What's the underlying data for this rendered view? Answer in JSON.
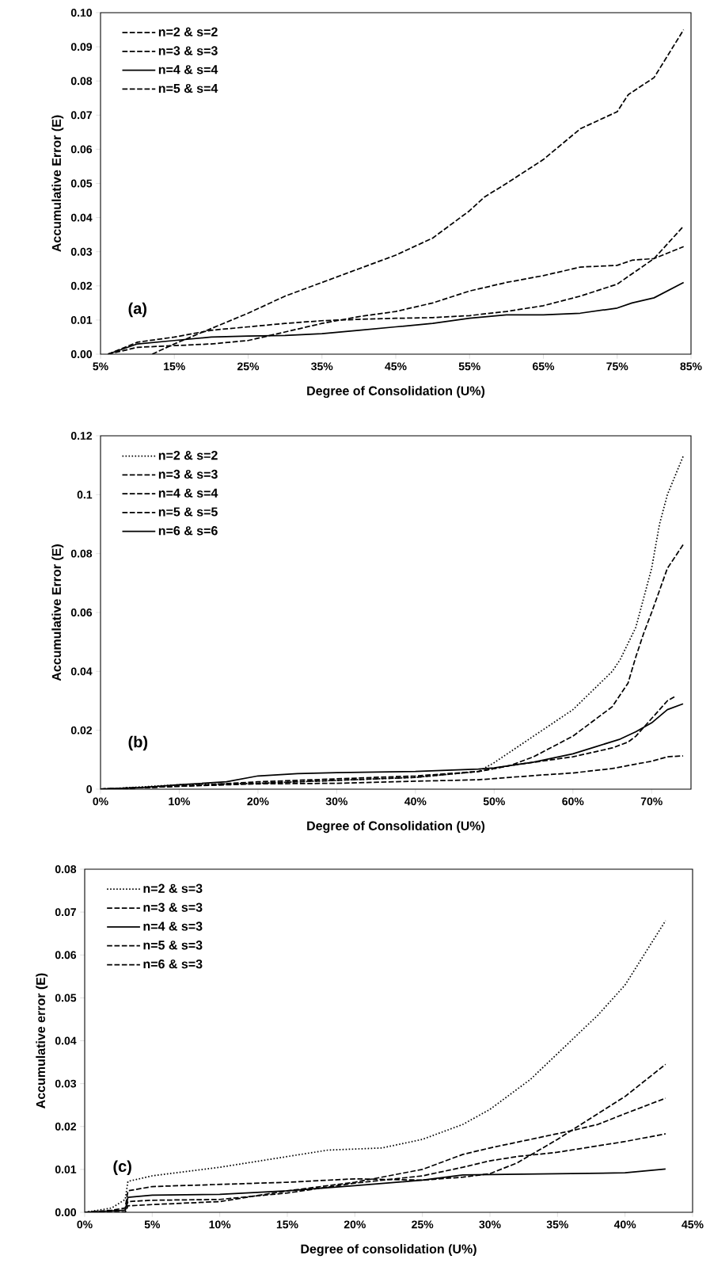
{
  "chart_data": [
    {
      "type": "line",
      "xlabel": "Degree of Consolidation (U%)",
      "ylabel": "Accumulative Error (E)",
      "annotations": [
        "(a)"
      ],
      "legend": "top left",
      "xlim": [
        5,
        85
      ],
      "xticks": [
        {
          "value": 5,
          "label": "5%"
        },
        {
          "value": 15,
          "label": "15%"
        },
        {
          "value": 25,
          "label": "25%"
        },
        {
          "value": 35,
          "label": "35%"
        },
        {
          "value": 45,
          "label": "45%"
        },
        {
          "value": 55,
          "label": "55%"
        },
        {
          "value": 65,
          "label": "65%"
        },
        {
          "value": 75,
          "label": "75%"
        },
        {
          "value": 85,
          "label": "85%"
        }
      ],
      "ylim": [
        0,
        0.1
      ],
      "yticks": [
        {
          "value": 0,
          "label": "0.00"
        },
        {
          "value": 0.01,
          "label": "0.01"
        },
        {
          "value": 0.02,
          "label": "0.02"
        },
        {
          "value": 0.03,
          "label": "0.03"
        },
        {
          "value": 0.04,
          "label": "0.04"
        },
        {
          "value": 0.05,
          "label": "0.05"
        },
        {
          "value": 0.06,
          "label": "0.06"
        },
        {
          "value": 0.07,
          "label": "0.07"
        },
        {
          "value": 0.08,
          "label": "0.08"
        },
        {
          "value": 0.09,
          "label": "0.09"
        },
        {
          "value": 0.1,
          "label": "0.10"
        }
      ],
      "series": [
        {
          "name": "n=2 & s=2",
          "color": "#000000",
          "line_style": "dashed",
          "x": [
            12,
            15,
            20,
            25,
            30,
            35,
            40,
            45,
            50,
            55,
            57,
            60,
            65,
            70,
            75,
            76.5,
            80,
            84
          ],
          "values": [
            0.0,
            0.003,
            0.0075,
            0.012,
            0.017,
            0.021,
            0.025,
            0.029,
            0.034,
            0.042,
            0.046,
            0.05,
            0.057,
            0.066,
            0.071,
            0.076,
            0.081,
            0.095
          ]
        },
        {
          "name": "n=3 & s=3",
          "color": "#000000",
          "line_style": "dashed",
          "x": [
            6,
            10,
            15,
            20,
            25,
            30,
            35,
            40,
            45,
            50,
            55,
            60,
            65,
            70,
            75,
            77,
            80,
            84
          ],
          "values": [
            0.0,
            0.002,
            0.0025,
            0.003,
            0.004,
            0.0065,
            0.009,
            0.011,
            0.0125,
            0.015,
            0.0185,
            0.021,
            0.023,
            0.0255,
            0.026,
            0.0275,
            0.028,
            0.0315
          ]
        },
        {
          "name": "n=4 & s=4",
          "color": "#000000",
          "line_style": "solid",
          "x": [
            6,
            10,
            15,
            20,
            25,
            30,
            35,
            40,
            45,
            50,
            55,
            60,
            65,
            70,
            75,
            77,
            80,
            84
          ],
          "values": [
            0.0,
            0.003,
            0.004,
            0.005,
            0.0053,
            0.0055,
            0.006,
            0.007,
            0.008,
            0.009,
            0.0105,
            0.0115,
            0.0115,
            0.012,
            0.0135,
            0.015,
            0.0165,
            0.021
          ]
        },
        {
          "name": "n=5 & s=4",
          "color": "#000000",
          "line_style": "dashed",
          "x": [
            6,
            10,
            15,
            20,
            25,
            30,
            35,
            40,
            45,
            50,
            55,
            60,
            65,
            70,
            75,
            80,
            84
          ],
          "values": [
            0.0,
            0.0035,
            0.005,
            0.007,
            0.008,
            0.009,
            0.0098,
            0.0102,
            0.0105,
            0.0107,
            0.0113,
            0.0125,
            0.0142,
            0.017,
            0.0205,
            0.028,
            0.0375
          ]
        }
      ]
    },
    {
      "type": "line",
      "xlabel": "Degree of Consolidation (U%)",
      "ylabel": "Accumulative Error (E)",
      "annotations": [
        "(b)"
      ],
      "legend": "top left",
      "xlim": [
        0,
        75
      ],
      "xticks": [
        {
          "value": 0,
          "label": "0%"
        },
        {
          "value": 10,
          "label": "10%"
        },
        {
          "value": 20,
          "label": "20%"
        },
        {
          "value": 30,
          "label": "30%"
        },
        {
          "value": 40,
          "label": "40%"
        },
        {
          "value": 50,
          "label": "50%"
        },
        {
          "value": 60,
          "label": "60%"
        },
        {
          "value": 70,
          "label": "70%"
        }
      ],
      "ylim": [
        0,
        0.12
      ],
      "yticks": [
        0,
        0.02,
        0.04,
        0.06,
        0.08,
        0.1,
        0.12
      ],
      "series": [
        {
          "name": "n=2 & s=2",
          "color": "#000000",
          "line_style": "dotted",
          "x": [
            0,
            10,
            20,
            30,
            40,
            48,
            50,
            55,
            60,
            65,
            66,
            68,
            70,
            71,
            72,
            74
          ],
          "values": [
            0,
            0.0015,
            0.002,
            0.003,
            0.004,
            0.006,
            0.009,
            0.018,
            0.027,
            0.04,
            0.044,
            0.055,
            0.075,
            0.09,
            0.1,
            0.113
          ]
        },
        {
          "name": "n=3 & s=3",
          "color": "#000000",
          "line_style": "dashed",
          "x": [
            0,
            10,
            20,
            30,
            40,
            48,
            52,
            55,
            60,
            65,
            67,
            68,
            69,
            70,
            72,
            74
          ],
          "values": [
            0,
            0.001,
            0.002,
            0.003,
            0.004,
            0.006,
            0.008,
            0.011,
            0.018,
            0.028,
            0.036,
            0.045,
            0.053,
            0.06,
            0.075,
            0.083
          ]
        },
        {
          "name": "n=4 & s=4",
          "color": "#000000",
          "line_style": "dashed",
          "x": [
            0,
            10,
            20,
            30,
            40,
            48,
            52,
            56,
            60,
            65,
            67,
            68,
            70,
            72,
            73
          ],
          "values": [
            0,
            0.001,
            0.0025,
            0.0035,
            0.0045,
            0.006,
            0.008,
            0.0095,
            0.011,
            0.014,
            0.016,
            0.018,
            0.024,
            0.03,
            0.0315
          ]
        },
        {
          "name": "n=5 & s=5",
          "color": "#000000",
          "line_style": "dashed",
          "x": [
            0,
            10,
            20,
            30,
            40,
            48,
            52,
            56,
            60,
            65,
            68,
            70,
            72,
            74
          ],
          "values": [
            0,
            0.001,
            0.0018,
            0.002,
            0.0027,
            0.0032,
            0.004,
            0.0048,
            0.0055,
            0.007,
            0.0085,
            0.0095,
            0.011,
            0.0113
          ]
        },
        {
          "name": "n=6 & s=6",
          "color": "#000000",
          "line_style": "solid",
          "x": [
            0,
            5,
            10,
            16,
            20,
            25,
            30,
            40,
            48,
            50,
            55,
            60,
            63,
            66,
            68,
            70,
            72,
            74
          ],
          "values": [
            0,
            0.0005,
            0.0015,
            0.0025,
            0.0045,
            0.0053,
            0.0056,
            0.006,
            0.0068,
            0.0072,
            0.0092,
            0.012,
            0.0145,
            0.017,
            0.0195,
            0.0225,
            0.027,
            0.029
          ]
        }
      ]
    },
    {
      "type": "line",
      "xlabel": "Degree of consolidation (U%)",
      "ylabel": "Accumulative error (E)",
      "annotations": [
        "(c)"
      ],
      "legend": "top left",
      "xlim": [
        0,
        45
      ],
      "xticks": [
        {
          "value": 0,
          "label": "0%"
        },
        {
          "value": 5,
          "label": "5%"
        },
        {
          "value": 10,
          "label": "10%"
        },
        {
          "value": 15,
          "label": "15%"
        },
        {
          "value": 20,
          "label": "20%"
        },
        {
          "value": 25,
          "label": "25%"
        },
        {
          "value": 30,
          "label": "30%"
        },
        {
          "value": 35,
          "label": "35%"
        },
        {
          "value": 40,
          "label": "40%"
        },
        {
          "value": 45,
          "label": "45%"
        }
      ],
      "ylim": [
        0,
        0.08
      ],
      "yticks": [
        {
          "value": 0,
          "label": "0.00"
        },
        0.01,
        0.02,
        0.03,
        0.04,
        0.05,
        0.06,
        0.07,
        0.08
      ],
      "series": [
        {
          "name": "n=2 & s=3",
          "color": "#000000",
          "line_style": "dotted",
          "x": [
            0,
            2,
            3,
            3.2,
            5,
            10,
            15,
            18,
            22,
            25,
            28,
            30,
            33,
            35,
            38,
            40,
            43
          ],
          "values": [
            0,
            0.001,
            0.003,
            0.0072,
            0.0085,
            0.0105,
            0.013,
            0.0145,
            0.015,
            0.017,
            0.0205,
            0.024,
            0.031,
            0.037,
            0.046,
            0.053,
            0.068
          ]
        },
        {
          "name": "n=3 & s=3",
          "color": "#000000",
          "line_style": "dashed",
          "x": [
            0,
            2,
            3,
            3.2,
            5,
            10,
            15,
            20,
            25,
            28,
            30,
            32,
            35,
            38,
            40,
            43
          ],
          "values": [
            0,
            0.0005,
            0.001,
            0.005,
            0.006,
            0.0065,
            0.007,
            0.0078,
            0.0075,
            0.0082,
            0.009,
            0.0115,
            0.017,
            0.023,
            0.027,
            0.0345
          ]
        },
        {
          "name": "n=4 & s=3",
          "color": "#000000",
          "line_style": "solid",
          "x": [
            0,
            3,
            3.2,
            5,
            10,
            15,
            20,
            25,
            28,
            30,
            35,
            40,
            43
          ],
          "values": [
            0,
            0.0005,
            0.0035,
            0.004,
            0.0042,
            0.005,
            0.0062,
            0.0075,
            0.0087,
            0.0088,
            0.009,
            0.0092,
            0.0101
          ]
        },
        {
          "name": "n=5 & s=3",
          "color": "#000000",
          "line_style": "dashed",
          "x": [
            0,
            3,
            3.2,
            5,
            10,
            15,
            20,
            25,
            28,
            30,
            32,
            35,
            38,
            40,
            43
          ],
          "values": [
            0,
            0.0005,
            0.0025,
            0.0028,
            0.003,
            0.0045,
            0.0068,
            0.0085,
            0.0105,
            0.012,
            0.013,
            0.014,
            0.0155,
            0.0165,
            0.0183
          ]
        },
        {
          "name": "n=6 & s=3",
          "color": "#000000",
          "line_style": "dashed",
          "x": [
            0,
            3,
            3.2,
            5,
            10,
            15,
            20,
            25,
            28,
            30,
            33,
            36,
            38,
            40,
            43
          ],
          "values": [
            0,
            0,
            0.0015,
            0.0018,
            0.0025,
            0.005,
            0.007,
            0.01,
            0.0135,
            0.015,
            0.017,
            0.019,
            0.0205,
            0.023,
            0.0266
          ]
        }
      ]
    }
  ]
}
